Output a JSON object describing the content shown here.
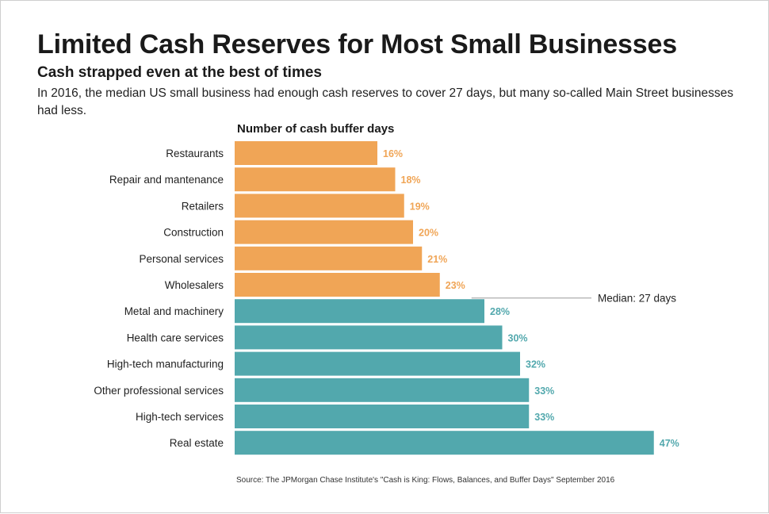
{
  "header": {
    "title": "Limited Cash Reserves for Most Small Businesses",
    "subtitle": "Cash strapped even at the best of times",
    "description": "In 2016, the median US small business had enough cash reserves to cover 27 days, but many so-called Main Street businesses had less."
  },
  "footer": {
    "source": "Source: The JPMorgan Chase Institute's \"Cash is King: Flows, Balances, and Buffer Days\" September 2016"
  },
  "colors": {
    "below_median": "#f0a556",
    "above_median": "#52a8ad",
    "median_line": "#9a9a9a"
  },
  "chart_data": {
    "type": "bar",
    "orientation": "horizontal",
    "title": "Limited Cash Reserves for Most Small Businesses",
    "xlabel": "Number of cash buffer days",
    "ylabel": "",
    "xlim": [
      0,
      47
    ],
    "categories": [
      "Restaurants",
      "Repair and mantenance",
      "Retailers",
      "Construction",
      "Personal services",
      "Wholesalers",
      "Metal and machinery",
      "Health care services",
      "High-tech manufacturing",
      "Other professional services",
      "High-tech services",
      "Real estate"
    ],
    "values": [
      16,
      18,
      19,
      20,
      21,
      23,
      28,
      30,
      32,
      33,
      33,
      47
    ],
    "value_labels": [
      "16%",
      "18%",
      "19%",
      "20%",
      "21%",
      "23%",
      "28%",
      "30%",
      "32%",
      "33%",
      "33%",
      "47%"
    ],
    "median": {
      "value": 27,
      "label": "Median: 27 days"
    },
    "legend": "none",
    "grid": false
  }
}
